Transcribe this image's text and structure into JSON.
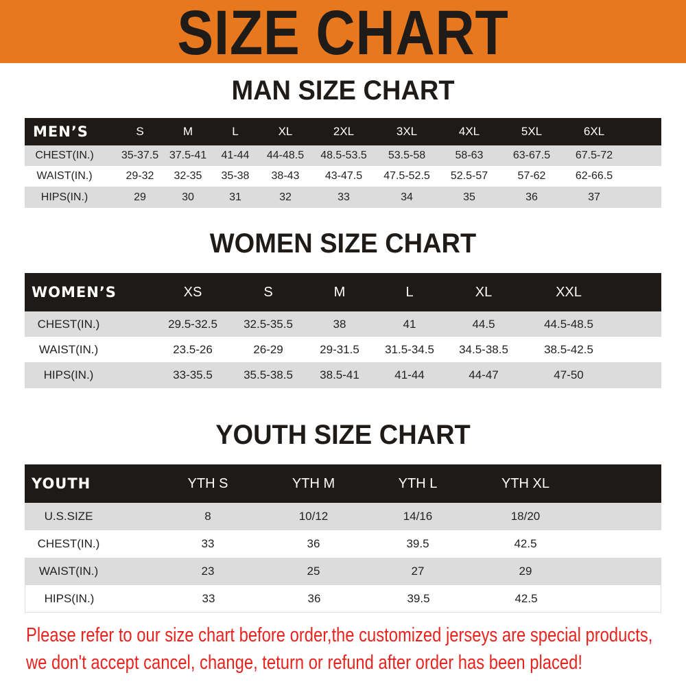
{
  "banner": {
    "title": "SIZE CHART",
    "color": "#e8781e"
  },
  "men": {
    "title": "MAN SIZE CHART",
    "header": [
      "MEN’S",
      "S",
      "M",
      "L",
      "XL",
      "2XL",
      "3XL",
      "4XL",
      "5XL",
      "6XL"
    ],
    "rows": [
      [
        "CHEST(IN.)",
        "35-37.5",
        "37.5-41",
        "41-44",
        "44-48.5",
        "48.5-53.5",
        "53.5-58",
        "58-63",
        "63-67.5",
        "67.5-72"
      ],
      [
        "WAIST(IN.)",
        "29-32",
        "32-35",
        "35-38",
        "38-43",
        "43-47.5",
        "47.5-52.5",
        "52.5-57",
        "57-62",
        "62-66.5"
      ],
      [
        "HIPS(IN.)",
        "29",
        "30",
        "31",
        "32",
        "33",
        "34",
        "35",
        "36",
        "37"
      ]
    ]
  },
  "women": {
    "title": "WOMEN SIZE CHART",
    "header": [
      "WOMEN’S",
      "XS",
      "S",
      "M",
      "L",
      "XL",
      "XXL"
    ],
    "rows": [
      [
        "CHEST(IN.)",
        "29.5-32.5",
        "32.5-35.5",
        "38",
        "41",
        "44.5",
        "44.5-48.5"
      ],
      [
        "WAIST(IN.)",
        "23.5-26",
        "26-29",
        "29-31.5",
        "31.5-34.5",
        "34.5-38.5",
        "38.5-42.5"
      ],
      [
        "HIPS(IN.)",
        "33-35.5",
        "35.5-38.5",
        "38.5-41",
        "41-44",
        "44-47",
        "47-50"
      ]
    ]
  },
  "youth": {
    "title": "YOUTH SIZE CHART",
    "header": [
      "YOUTH",
      "YTH S",
      "YTH M",
      "YTH L",
      "YTH XL"
    ],
    "rows": [
      [
        "U.S.SIZE",
        "8",
        "10/12",
        "14/16",
        "18/20"
      ],
      [
        "CHEST(IN.)",
        "33",
        "36",
        "39.5",
        "42.5"
      ],
      [
        "WAIST(IN.)",
        "23",
        "25",
        "27",
        "29"
      ],
      [
        "HIPS(IN.)",
        "33",
        "36",
        "39.5",
        "42.5"
      ]
    ]
  },
  "notice": {
    "line1": "Please refer to our size chart before order,the customized jerseys are special products,",
    "line2": "we don't accept cancel, change, teturn or refund after order has been placed!",
    "color": "#e8231e"
  }
}
